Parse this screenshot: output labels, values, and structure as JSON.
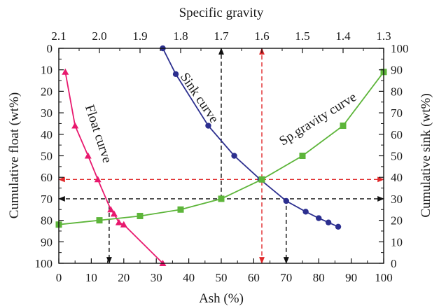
{
  "chart_data": {
    "type": "line",
    "axes": {
      "x_bottom": {
        "label": "Ash (%)",
        "range": [
          0,
          100
        ],
        "ticks": [
          "0",
          "10",
          "20",
          "30",
          "40",
          "50",
          "60",
          "70",
          "80",
          "90",
          "100"
        ]
      },
      "x_top": {
        "label": "Specific gravity",
        "range": [
          2.1,
          1.3
        ],
        "ticks": [
          "2.1",
          "2.0",
          "1.9",
          "1.8",
          "1.7",
          "1.6",
          "1.5",
          "1.4",
          "1.3"
        ]
      },
      "y_left": {
        "label": "Cumulative float (wt%)",
        "range": [
          0,
          100
        ],
        "inverted": true,
        "ticks": [
          "0",
          "10",
          "20",
          "30",
          "40",
          "50",
          "60",
          "70",
          "80",
          "90",
          "100"
        ]
      },
      "y_right": {
        "label": "Cumulative sink (wt%)",
        "range": [
          0,
          100
        ],
        "ticks": [
          "100",
          "90",
          "80",
          "70",
          "60",
          "50",
          "40",
          "30",
          "20",
          "10",
          "0"
        ]
      }
    },
    "grid": false,
    "series": [
      {
        "name": "Float curve",
        "color": "#e8196e",
        "marker": "triangle",
        "axis": "ash_vs_cumulative_float",
        "x": [
          2,
          5,
          9,
          12,
          16,
          17,
          18.5,
          20,
          32
        ],
        "y": [
          11,
          36,
          50,
          61,
          75,
          77,
          81,
          82,
          100
        ]
      },
      {
        "name": "Sink curve",
        "color": "#2c2f8f",
        "marker": "circle",
        "axis": "ash_vs_cumulative_float",
        "x": [
          32,
          36,
          46,
          54,
          62,
          70,
          76,
          80,
          83,
          86
        ],
        "y": [
          0,
          12,
          36,
          50,
          61,
          71,
          76,
          79,
          81,
          83
        ]
      },
      {
        "name": "Sp.gravity curve",
        "color": "#5db53a",
        "marker": "square",
        "axis": "ash_vs_specific_gravity",
        "x": [
          0,
          12.5,
          25,
          37.5,
          50,
          62.5,
          75,
          87.5,
          100
        ],
        "y": [
          2.1,
          2.0,
          1.9,
          1.8,
          1.7,
          1.6,
          1.5,
          1.4,
          1.3
        ]
      }
    ],
    "reference_lines": [
      {
        "color": "#e0282a",
        "from": [
          0,
          61
        ],
        "to": [
          100,
          61
        ],
        "style": "dashed",
        "arrows": "both"
      },
      {
        "color": "#e0282a",
        "from": [
          62.5,
          0
        ],
        "to": [
          62.5,
          100
        ],
        "style": "dashed",
        "arrows": "both"
      },
      {
        "color": "#111111",
        "from": [
          0,
          70
        ],
        "to": [
          100,
          70
        ],
        "style": "dashed",
        "arrows": "both"
      },
      {
        "color": "#111111",
        "from": [
          50,
          70
        ],
        "to": [
          50,
          0
        ],
        "style": "dashed",
        "arrows": "end"
      },
      {
        "color": "#111111",
        "from": [
          15.5,
          70
        ],
        "to": [
          15.5,
          100
        ],
        "style": "dashed",
        "arrows": "end"
      },
      {
        "color": "#111111",
        "from": [
          70,
          70
        ],
        "to": [
          70,
          100
        ],
        "style": "dashed",
        "arrows": "end"
      }
    ]
  }
}
